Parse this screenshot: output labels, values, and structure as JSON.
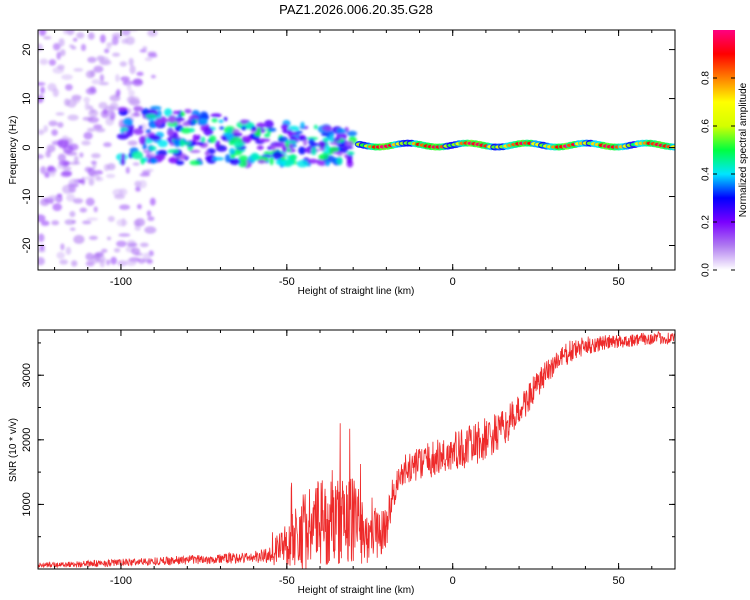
{
  "title": "PAZ1.2026.006.20.35.G28",
  "chart_data": [
    {
      "type": "heatmap",
      "xlabel": "Height of straight line (km)",
      "ylabel": "Frequency (Hz)",
      "xlim": [
        -125,
        67
      ],
      "ylim": [
        -25,
        24
      ],
      "xticks": [
        -100,
        -50,
        0,
        50
      ],
      "xtick_labels": [
        "-100",
        "-50",
        "0",
        "50"
      ],
      "yticks": [
        -20,
        -10,
        0,
        10,
        20
      ],
      "ytick_labels": [
        "-20",
        "-10",
        "0",
        "10",
        "20"
      ],
      "colorbar": {
        "label": "Normalized spectral amplitude",
        "range": [
          0,
          1
        ],
        "ticks": [
          0.0,
          0.2,
          0.4,
          0.6,
          0.8
        ],
        "tick_labels": [
          "0.0",
          "0.2",
          "0.4",
          "0.6",
          "0.8"
        ],
        "colormap": [
          "#ffffff",
          "#b07cf0",
          "#7a00ff",
          "#0000ff",
          "#00e6ff",
          "#00ff40",
          "#d4ff00",
          "#ffff00",
          "#ff8000",
          "#ff0000",
          "#ff0080"
        ]
      },
      "regions": [
        {
          "x_range": [
            -125,
            -90
          ],
          "freq_center": 0,
          "freq_spread": 24,
          "amplitude": 0.12,
          "description": "diffuse low-amplitude noise"
        },
        {
          "x_range": [
            -100,
            -30
          ],
          "freq_center": 3,
          "freq_spread": 6,
          "amplitude": 0.3,
          "description": "scattered multipath energy"
        },
        {
          "x_range": [
            -28,
            67
          ],
          "freq_center": 0.5,
          "freq_spread": 1,
          "amplitude": 0.9,
          "description": "coherent carrier line near 0 Hz"
        }
      ]
    },
    {
      "type": "line",
      "xlabel": "Height of straight line (km)",
      "ylabel": "SNR (10 * v/v)",
      "xlim": [
        -125,
        67
      ],
      "ylim": [
        0,
        3700
      ],
      "xticks": [
        -100,
        -50,
        0,
        50
      ],
      "xtick_labels": [
        "-100",
        "-50",
        "0",
        "50"
      ],
      "yticks": [
        1000,
        2000,
        3000
      ],
      "ytick_labels": [
        "1000",
        "2000",
        "3000"
      ],
      "line_color": "#ee2a2a",
      "series": [
        {
          "name": "SNR",
          "x": [
            -125,
            -110,
            -95,
            -80,
            -70,
            -60,
            -55,
            -50,
            -45,
            -40,
            -35,
            -30,
            -25,
            -20,
            -18,
            -15,
            -10,
            -5,
            0,
            5,
            10,
            15,
            20,
            25,
            30,
            35,
            40,
            45,
            50,
            55,
            60,
            67
          ],
          "y": [
            60,
            80,
            110,
            140,
            160,
            180,
            220,
            380,
            600,
            700,
            720,
            780,
            500,
            650,
            1200,
            1500,
            1650,
            1700,
            1800,
            1900,
            2000,
            2150,
            2450,
            2800,
            3150,
            3350,
            3450,
            3500,
            3520,
            3550,
            3570,
            3580
          ],
          "noise": [
            40,
            50,
            60,
            70,
            80,
            90,
            150,
            400,
            600,
            700,
            650,
            700,
            450,
            350,
            250,
            250,
            250,
            300,
            320,
            320,
            350,
            300,
            250,
            230,
            200,
            180,
            150,
            120,
            110,
            100,
            100,
            100
          ]
        }
      ]
    }
  ]
}
